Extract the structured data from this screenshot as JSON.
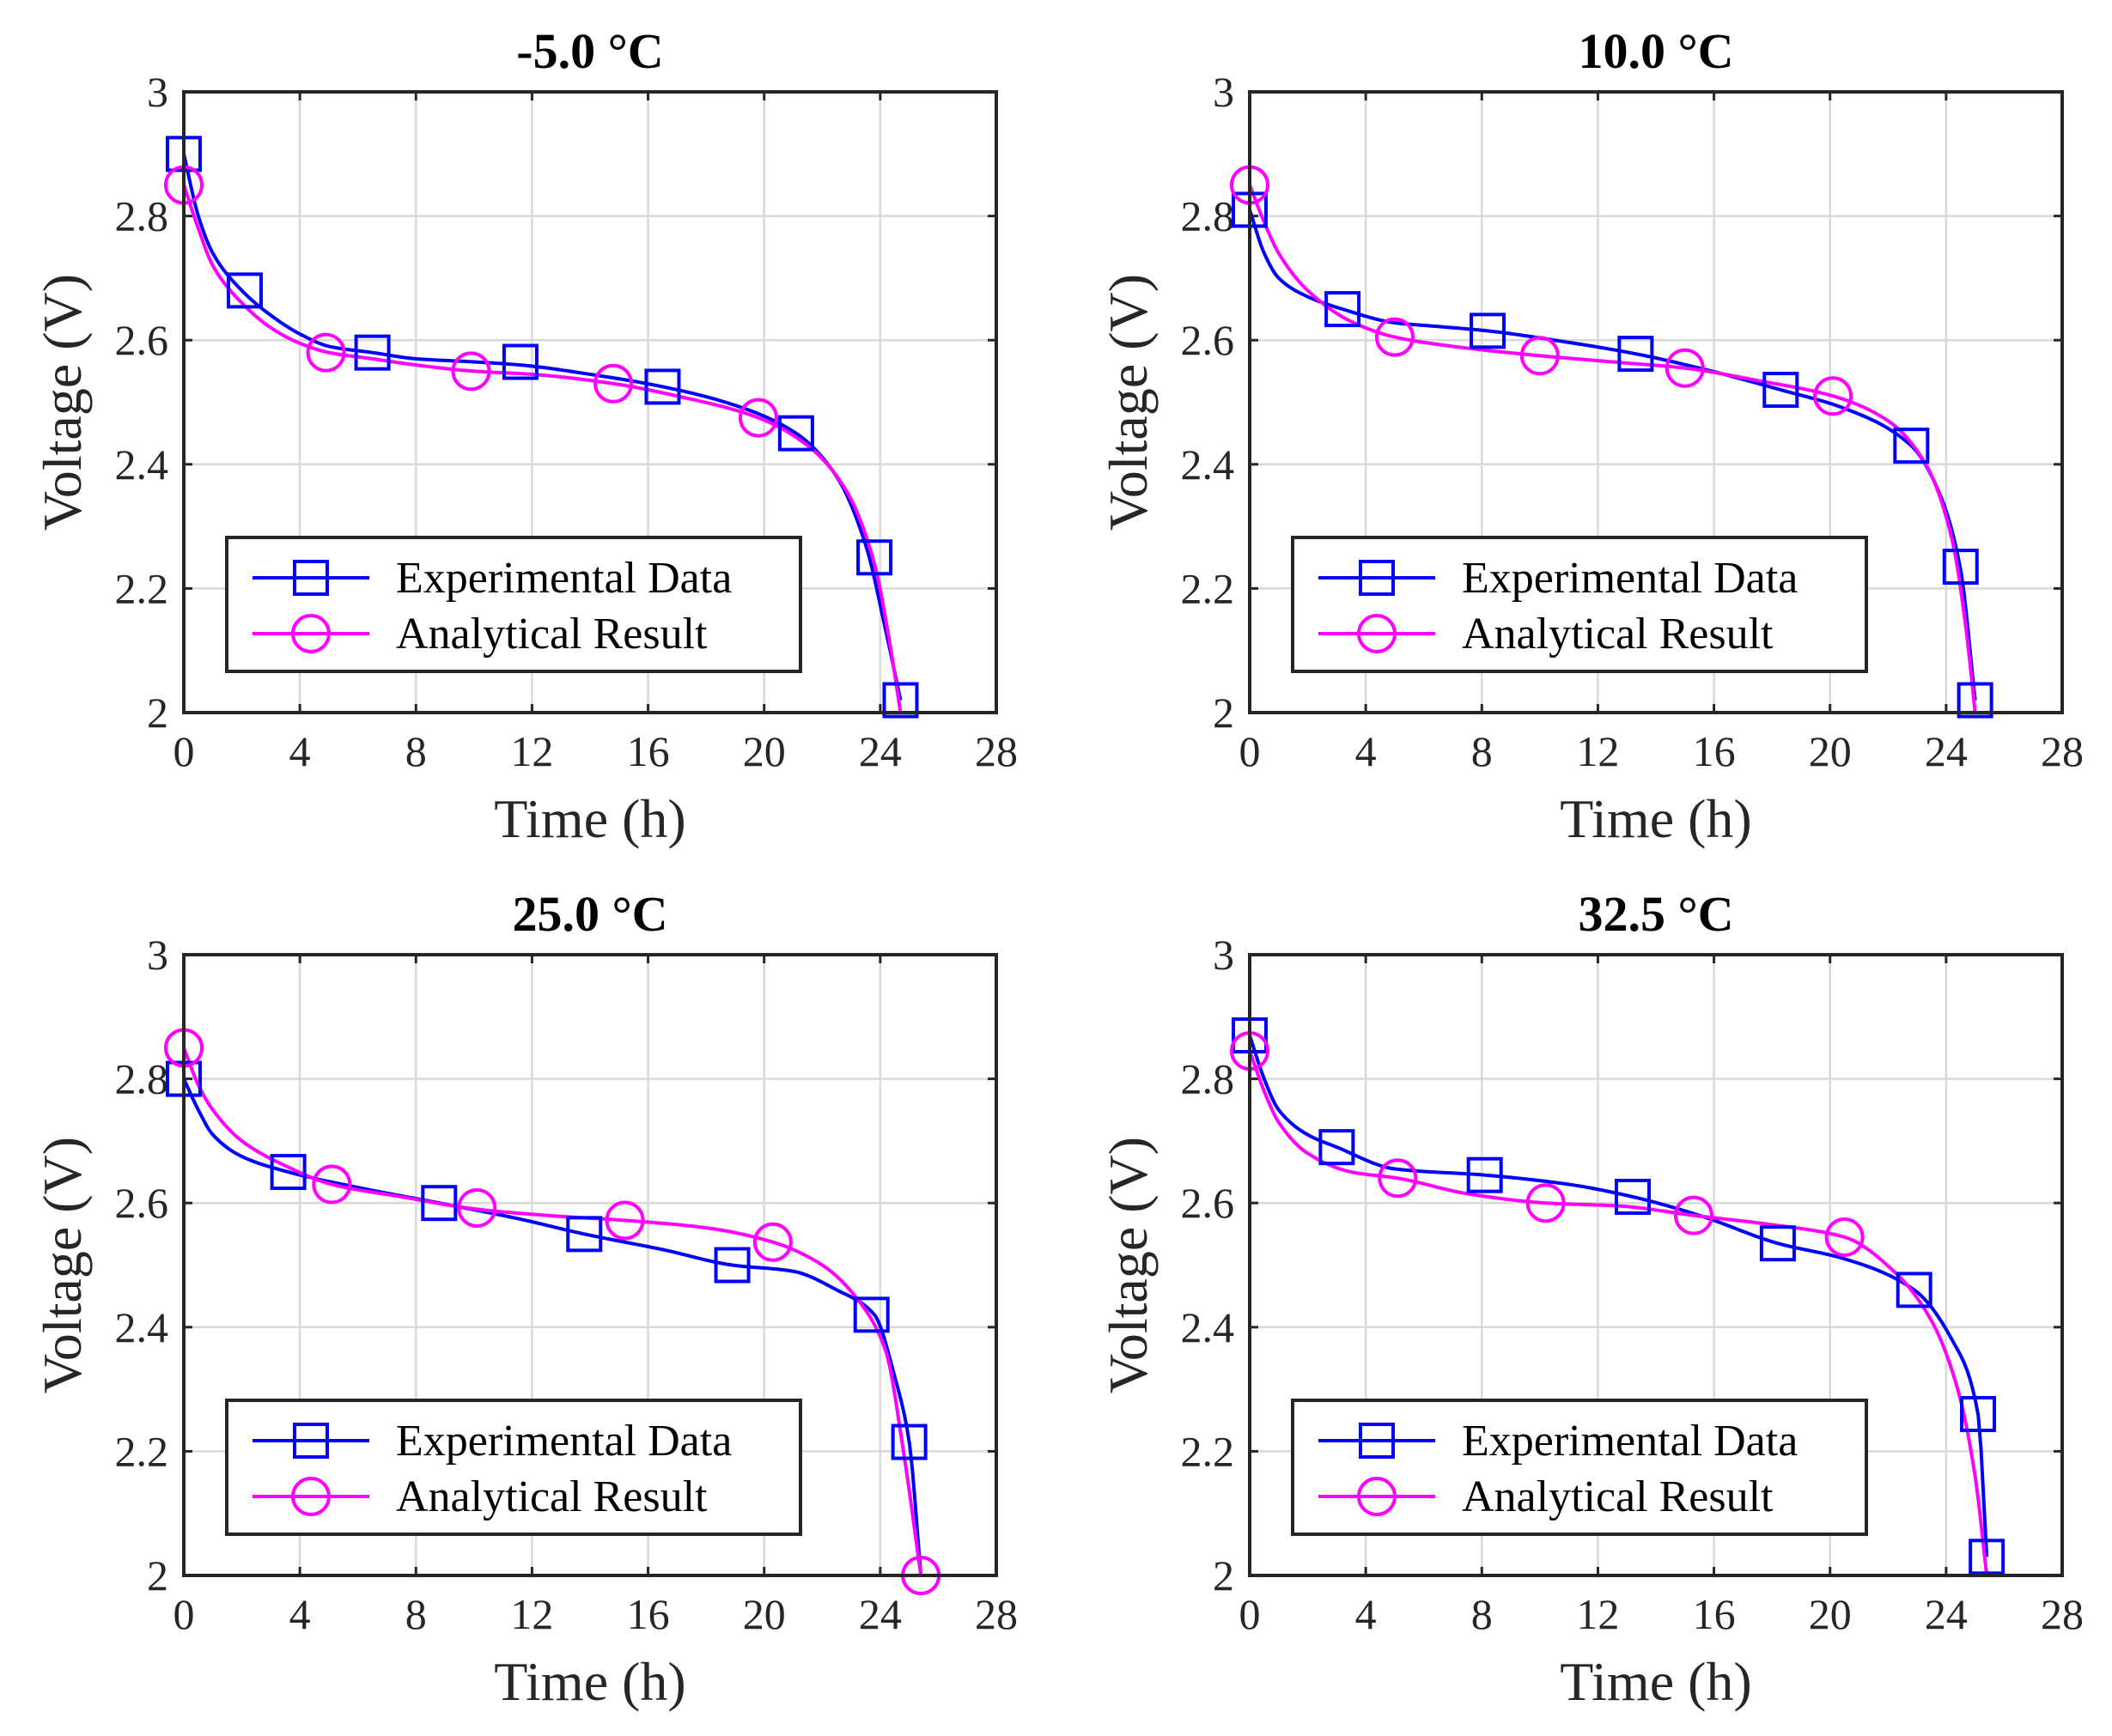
{
  "chart_data": [
    {
      "type": "line",
      "title": "-5.0 °C",
      "xlabel": "Time (h)",
      "ylabel": "Voltage (V)",
      "xlim": [
        0,
        28
      ],
      "ylim": [
        2,
        3
      ],
      "xticks": [
        0,
        4,
        8,
        12,
        16,
        20,
        24,
        28
      ],
      "yticks": [
        2,
        2.2,
        2.4,
        2.6,
        2.8,
        3
      ],
      "ytick_labels": [
        "2",
        "2.2",
        "2.4",
        "2.6",
        "2.8",
        "3"
      ],
      "grid": true,
      "legend": "bottom-left",
      "series": [
        {
          "name": "Experimental Data",
          "color": "#0000ff",
          "marker": "square",
          "x": [
            0,
            0.5,
            1,
            2,
            3,
            4,
            5,
            6.5,
            8,
            10,
            11.6,
            14,
            16.5,
            19,
            21.1,
            22.5,
            23.5,
            24.2,
            24.7
          ],
          "y": [
            2.9,
            2.8,
            2.74,
            2.68,
            2.64,
            2.61,
            2.59,
            2.58,
            2.57,
            2.565,
            2.56,
            2.545,
            2.525,
            2.495,
            2.45,
            2.38,
            2.27,
            2.13,
            2.02
          ],
          "marker_x": [
            0,
            2.1,
            6.5,
            11.6,
            16.5,
            21.1,
            23.8,
            24.7
          ],
          "marker_y": [
            2.9,
            2.68,
            2.58,
            2.565,
            2.525,
            2.45,
            2.25,
            2.02
          ]
        },
        {
          "name": "Analytical Result",
          "color": "#ff00ff",
          "marker": "circle",
          "x": [
            0,
            0.5,
            1,
            2,
            3,
            4,
            5,
            6.5,
            8,
            10,
            12,
            14.8,
            17,
            19.8,
            21.5,
            22.8,
            23.8,
            24.3,
            24.7
          ],
          "y": [
            2.85,
            2.78,
            2.72,
            2.66,
            2.62,
            2.595,
            2.58,
            2.57,
            2.56,
            2.55,
            2.545,
            2.53,
            2.51,
            2.475,
            2.43,
            2.36,
            2.24,
            2.12,
            2.0
          ],
          "marker_x": [
            0,
            4.9,
            9.9,
            14.8,
            19.8
          ],
          "marker_y": [
            2.85,
            2.58,
            2.55,
            2.53,
            2.475
          ]
        }
      ]
    },
    {
      "type": "line",
      "title": "10.0 °C",
      "xlabel": "Time (h)",
      "ylabel": "Voltage (V)",
      "xlim": [
        0,
        28
      ],
      "ylim": [
        2,
        3
      ],
      "xticks": [
        0,
        4,
        8,
        12,
        16,
        20,
        24,
        28
      ],
      "yticks": [
        2,
        2.2,
        2.4,
        2.6,
        2.8,
        3
      ],
      "ytick_labels": [
        "2",
        "2.2",
        "2.4",
        "2.6",
        "2.8",
        "3"
      ],
      "grid": true,
      "legend": "bottom-left",
      "series": [
        {
          "name": "Experimental Data",
          "color": "#0000ff",
          "marker": "square",
          "x": [
            0,
            0.5,
            1,
            2,
            3.2,
            5,
            6.5,
            8.2,
            10.5,
            13.3,
            15.5,
            18.3,
            20.5,
            22.8,
            23.8,
            24.5,
            25.0
          ],
          "y": [
            2.81,
            2.74,
            2.7,
            2.67,
            2.65,
            2.628,
            2.622,
            2.615,
            2.6,
            2.578,
            2.555,
            2.52,
            2.49,
            2.43,
            2.35,
            2.23,
            2.02
          ],
          "marker_x": [
            0,
            3.2,
            8.2,
            13.3,
            18.3,
            22.8,
            24.5,
            25.0
          ],
          "marker_y": [
            2.81,
            2.65,
            2.615,
            2.578,
            2.52,
            2.43,
            2.235,
            2.02
          ]
        },
        {
          "name": "Analytical Result",
          "color": "#ff00ff",
          "marker": "circle",
          "x": [
            0,
            0.5,
            1,
            2,
            3.5,
            5,
            7,
            10,
            12.5,
            15,
            17.5,
            20.1,
            22,
            23.3,
            24.2,
            24.7,
            25.0
          ],
          "y": [
            2.85,
            2.79,
            2.74,
            2.68,
            2.63,
            2.605,
            2.59,
            2.575,
            2.565,
            2.555,
            2.535,
            2.51,
            2.47,
            2.4,
            2.28,
            2.13,
            2.0
          ],
          "marker_x": [
            0,
            5.0,
            10.0,
            15.0,
            20.1
          ],
          "marker_y": [
            2.85,
            2.605,
            2.575,
            2.555,
            2.51
          ]
        }
      ]
    },
    {
      "type": "line",
      "title": "25.0 °C",
      "xlabel": "Time (h)",
      "ylabel": "Voltage (V)",
      "xlim": [
        0,
        28
      ],
      "ylim": [
        2,
        3
      ],
      "xticks": [
        0,
        4,
        8,
        12,
        16,
        20,
        24,
        28
      ],
      "yticks": [
        2,
        2.2,
        2.4,
        2.6,
        2.8,
        3
      ],
      "ytick_labels": [
        "2",
        "2.2",
        "2.4",
        "2.6",
        "2.8",
        "3"
      ],
      "grid": true,
      "legend": "bottom-left",
      "series": [
        {
          "name": "Experimental Data",
          "color": "#0000ff",
          "marker": "square",
          "x": [
            0,
            0.5,
            1,
            2,
            3.6,
            6,
            8.8,
            11.5,
            13.8,
            16.5,
            18.9,
            21,
            22.5,
            23.8,
            24.5,
            25.0,
            25.4
          ],
          "y": [
            2.8,
            2.75,
            2.71,
            2.675,
            2.65,
            2.625,
            2.6,
            2.575,
            2.55,
            2.525,
            2.5,
            2.49,
            2.46,
            2.42,
            2.32,
            2.215,
            2.0
          ],
          "marker_x": [
            0,
            3.6,
            8.8,
            13.8,
            18.9,
            23.7,
            25.0
          ],
          "marker_y": [
            2.8,
            2.65,
            2.6,
            2.55,
            2.5,
            2.42,
            2.215
          ]
        },
        {
          "name": "Analytical Result",
          "color": "#ff00ff",
          "marker": "circle",
          "x": [
            0,
            0.5,
            1,
            2,
            3.5,
            5.1,
            7.5,
            10.1,
            12.5,
            15.2,
            18,
            20.3,
            22,
            23.3,
            24.2,
            24.8,
            25.4
          ],
          "y": [
            2.85,
            2.79,
            2.75,
            2.7,
            2.66,
            2.63,
            2.61,
            2.59,
            2.58,
            2.572,
            2.56,
            2.537,
            2.5,
            2.44,
            2.36,
            2.2,
            2.0
          ],
          "marker_x": [
            0,
            5.1,
            10.1,
            15.2,
            20.3,
            25.4
          ],
          "marker_y": [
            2.85,
            2.63,
            2.592,
            2.572,
            2.537,
            2.0
          ]
        }
      ]
    },
    {
      "type": "line",
      "title": "32.5 °C",
      "xlabel": "Time (h)",
      "ylabel": "Voltage (V)",
      "xlim": [
        0,
        28
      ],
      "ylim": [
        2,
        3
      ],
      "xticks": [
        0,
        4,
        8,
        12,
        16,
        20,
        24,
        28
      ],
      "yticks": [
        2,
        2.2,
        2.4,
        2.6,
        2.8,
        3
      ],
      "ytick_labels": [
        "2",
        "2.2",
        "2.4",
        "2.6",
        "2.8",
        "3"
      ],
      "grid": true,
      "legend": "bottom-left",
      "series": [
        {
          "name": "Experimental Data",
          "color": "#0000ff",
          "marker": "square",
          "x": [
            0,
            0.5,
            1,
            2,
            3.0,
            5,
            8.1,
            11,
            13.2,
            15.5,
            18.2,
            20.5,
            22.9,
            24.2,
            25.1,
            25.4
          ],
          "y": [
            2.87,
            2.8,
            2.75,
            2.71,
            2.69,
            2.655,
            2.645,
            2.63,
            2.61,
            2.58,
            2.535,
            2.51,
            2.46,
            2.38,
            2.26,
            2.03
          ],
          "marker_x": [
            0,
            3.0,
            8.1,
            13.2,
            18.2,
            22.9,
            25.1,
            25.4
          ],
          "marker_y": [
            2.87,
            2.69,
            2.645,
            2.61,
            2.535,
            2.46,
            2.26,
            2.03
          ]
        },
        {
          "name": "Analytical Result",
          "color": "#ff00ff",
          "marker": "circle",
          "x": [
            0,
            0.5,
            1,
            2,
            3.5,
            5.1,
            7.5,
            10.2,
            12.8,
            15.3,
            18,
            20.5,
            22.2,
            23.5,
            24.4,
            25.0,
            25.4
          ],
          "y": [
            2.845,
            2.78,
            2.73,
            2.68,
            2.65,
            2.64,
            2.615,
            2.6,
            2.595,
            2.58,
            2.565,
            2.545,
            2.49,
            2.41,
            2.3,
            2.16,
            2.0
          ],
          "marker_x": [
            0,
            5.1,
            10.2,
            15.3,
            20.5
          ],
          "marker_y": [
            2.845,
            2.64,
            2.6,
            2.58,
            2.545
          ]
        }
      ]
    }
  ]
}
